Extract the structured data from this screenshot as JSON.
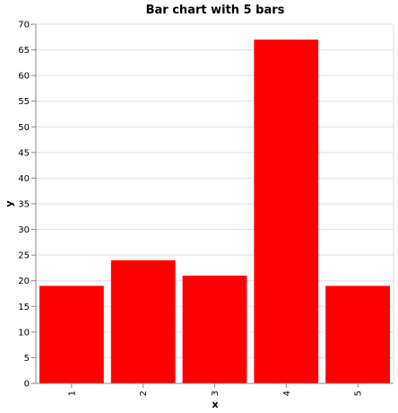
{
  "chart_data": {
    "type": "bar",
    "title": "Bar chart with 5 bars",
    "xlabel": "x",
    "ylabel": "y",
    "categories": [
      "1",
      "2",
      "3",
      "4",
      "5"
    ],
    "values": [
      19,
      24,
      21,
      67,
      19
    ],
    "ylim": [
      0,
      70
    ],
    "yticks": [
      0,
      5,
      10,
      15,
      20,
      25,
      30,
      35,
      40,
      45,
      50,
      55,
      60,
      65,
      70
    ],
    "bar_color": "#ff0000",
    "grid": true,
    "legend": "none"
  }
}
